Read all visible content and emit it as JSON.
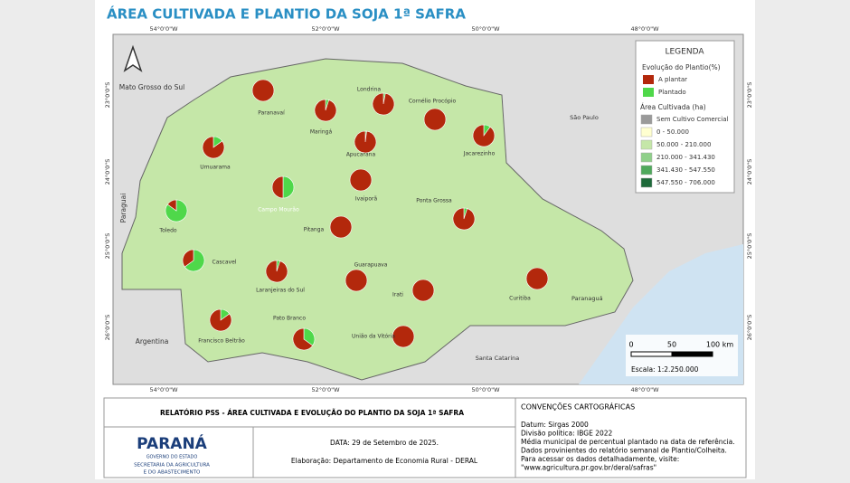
{
  "title": "ÁREA CULTIVADA E PLANTIO DA SOJA 1ª SAFRA",
  "legend": {
    "title": "LEGENDA",
    "evolution_title": "Evolução do Plantio(%)",
    "evolution_items": [
      {
        "label": "A plantar",
        "color": "#b3280c"
      },
      {
        "label": "Plantado",
        "color": "#4fd84a"
      }
    ],
    "area_title": "Área Cultivada (ha)",
    "area_items": [
      {
        "label": "Sem Cultivo Comercial",
        "color": "#9a9a9a"
      },
      {
        "label": "0 - 50.000",
        "color": "#ffffd0"
      },
      {
        "label": "50.000 - 210.000",
        "color": "#c5e7a8"
      },
      {
        "label": "210.000 - 341.430",
        "color": "#8fd08a"
      },
      {
        "label": "341.430 - 547.550",
        "color": "#4fa95c"
      },
      {
        "label": "547.550 - 706.000",
        "color": "#1e6a3a"
      }
    ]
  },
  "regions": [
    {
      "name": "Paranavaí",
      "planted": 0,
      "color": "#ffffd0"
    },
    {
      "name": "Maringá",
      "planted": 5,
      "color": "#4fa95c"
    },
    {
      "name": "Londrina",
      "planted": 3,
      "color": "#8fd08a"
    },
    {
      "name": "Cornélio Procópio",
      "planted": 0,
      "color": "#4fa95c"
    },
    {
      "name": "Jacarezinho",
      "planted": 10,
      "color": "#c5e7a8"
    },
    {
      "name": "Umuarama",
      "planted": 15,
      "color": "#c5e7a8"
    },
    {
      "name": "Apucarana",
      "planted": 2,
      "color": "#c5e7a8"
    },
    {
      "name": "Campo Mourão",
      "planted": 50,
      "color": "#1e6a3a"
    },
    {
      "name": "Toledo",
      "planted": 85,
      "color": "#4fa95c"
    },
    {
      "name": "Ivaiporã",
      "planted": 0,
      "color": "#c5e7a8"
    },
    {
      "name": "Ponta Grossa",
      "planted": 5,
      "color": "#4fa95c"
    },
    {
      "name": "Pitanga",
      "planted": 0,
      "color": "#c5e7a8"
    },
    {
      "name": "Cascavel",
      "planted": 65,
      "color": "#4fa95c"
    },
    {
      "name": "Guarapuava",
      "planted": 0,
      "color": "#8fd08a"
    },
    {
      "name": "Laranjeiras do Sul",
      "planted": 5,
      "color": "#c5e7a8"
    },
    {
      "name": "Curitiba",
      "planted": 0,
      "color": "#c5e7a8"
    },
    {
      "name": "Irati",
      "planted": 0,
      "color": "#c5e7a8"
    },
    {
      "name": "Francisco Beltrão",
      "planted": 15,
      "color": "#8fd08a"
    },
    {
      "name": "Pato Branco",
      "planted": 35,
      "color": "#8fd08a"
    },
    {
      "name": "União da Vitória",
      "planted": 0,
      "color": "#c5e7a8"
    }
  ],
  "paranagua": "Paranaguá",
  "neighbors": [
    "Mato Grosso do Sul",
    "São Paulo",
    "Paraguai",
    "Argentina",
    "Santa Catarina"
  ],
  "x_coords": [
    "54°0'0\"W",
    "52°0'0\"W",
    "50°0'0\"W",
    "48°0'0\"W"
  ],
  "y_coords": [
    "23°0'0\"S",
    "24°0'0\"S",
    "25°0'0\"S",
    "26°0'0\"S"
  ],
  "scale": {
    "ticks": [
      "0",
      "50",
      "100 km"
    ],
    "label": "Escala: 1:2.250.000"
  },
  "footer": {
    "report": "RELATÓRIO PSS - ÁREA CULTIVADA E EVOLUÇÃO DO PLANTIO DA SOJA 1ª SAFRA",
    "logo": [
      "PARANÁ",
      "GOVERNO DO ESTADO",
      "SECRETARIA DA AGRICULTURA",
      "E DO ABASTECIMENTO"
    ],
    "date": "DATA: 29 de Setembro de 2025.",
    "author": "Elaboração: Departamento de Economia Rural - DERAL",
    "conventions_title": "CONVENÇÕES CARTOGRÁFICAS",
    "conventions": [
      "Datum: Sirgas 2000",
      "Divisão política: IBGE 2022",
      "Média municipal de percentual plantado na data de referência.",
      "Dados provinientes do relatório semanal de Plantio/Colheita.",
      "Para acessar os dados detalhadamente, visite:",
      "\"www.agricultura.pr.gov.br/deral/safras\""
    ]
  }
}
